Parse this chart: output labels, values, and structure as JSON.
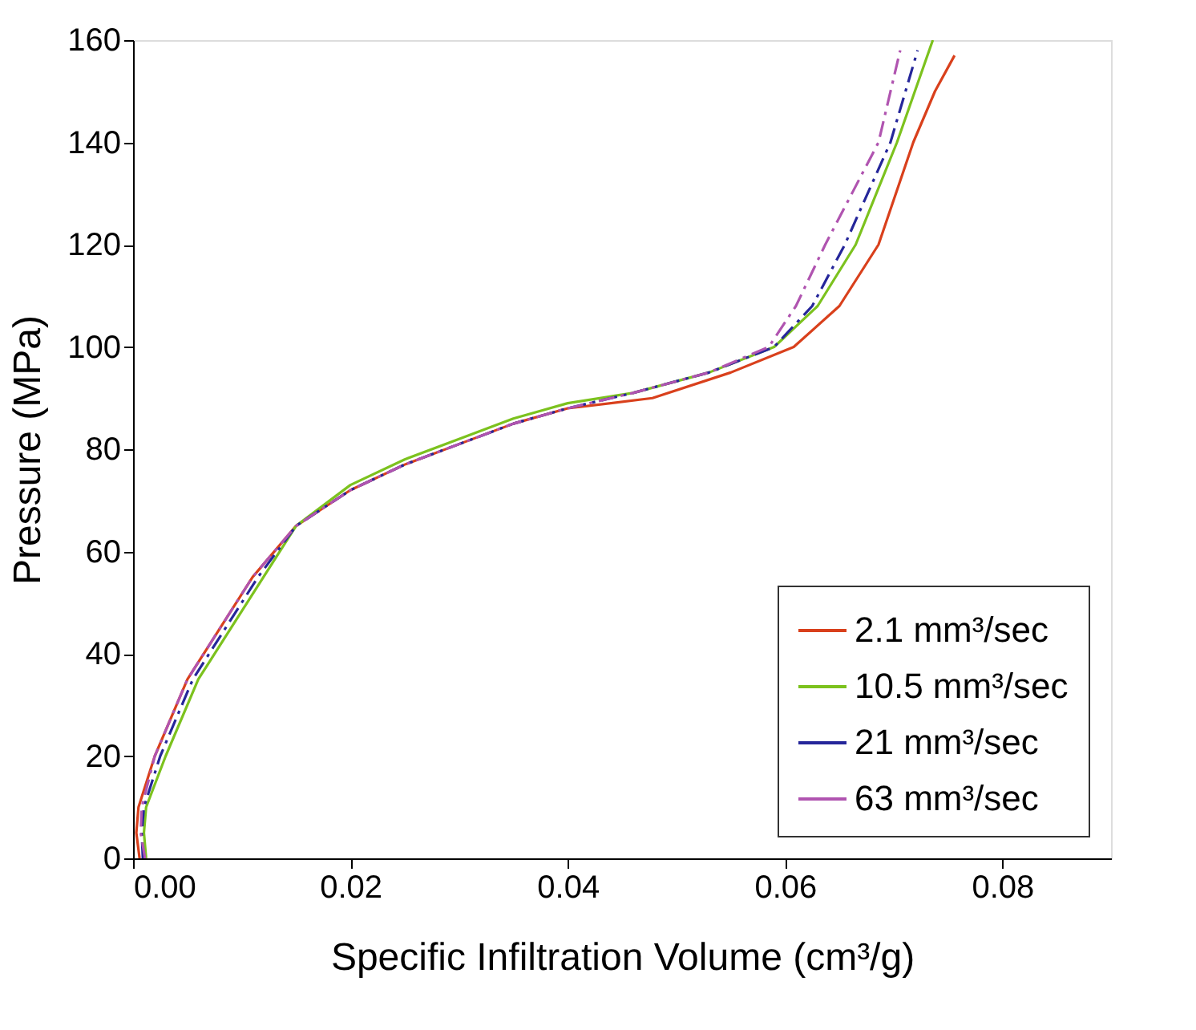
{
  "chart_data": {
    "type": "line",
    "xlabel": "Specific Infiltration Volume (cm³/g)",
    "ylabel": "Pressure (MPa)",
    "xlim": [
      0,
      0.09
    ],
    "xticks": [
      {
        "value": 0,
        "label": "0.00"
      },
      {
        "value": 0.02,
        "label": "0.02"
      },
      {
        "value": 0.04,
        "label": "0.04"
      },
      {
        "value": 0.06,
        "label": "0.06"
      },
      {
        "value": 0.08,
        "label": "0.08"
      }
    ],
    "ylim": [
      0,
      160
    ],
    "yticks": [
      0,
      20,
      40,
      60,
      80,
      100,
      120,
      140,
      160
    ],
    "grid": false,
    "legend": "bottom right",
    "series": [
      {
        "name": "2.1 mm³/sec",
        "color": "#d9401c",
        "line_style": "solid",
        "x": [
          0.0006,
          0.0003,
          0.0005,
          0.002,
          0.005,
          0.008,
          0.011,
          0.015,
          0.02,
          0.025,
          0.03,
          0.035,
          0.04,
          0.0478,
          0.055,
          0.0608,
          0.065,
          0.0686,
          0.0718,
          0.0738,
          0.0756
        ],
        "values": [
          0,
          5,
          10,
          20,
          35,
          45,
          55,
          65,
          72,
          77,
          81,
          85,
          88,
          90,
          95,
          100,
          108,
          120,
          140,
          150,
          157
        ]
      },
      {
        "name": "10.5 mm³/sec",
        "color": "#7cc21e",
        "line_style": "solid",
        "x": [
          0.0012,
          0.001,
          0.0012,
          0.003,
          0.006,
          0.009,
          0.012,
          0.015,
          0.02,
          0.025,
          0.03,
          0.035,
          0.04,
          0.046,
          0.053,
          0.059,
          0.063,
          0.0665,
          0.0703,
          0.0736
        ],
        "values": [
          0,
          5,
          10,
          20,
          35,
          45,
          55,
          65,
          73,
          78,
          82,
          86,
          89,
          91,
          95,
          100,
          108,
          120,
          140,
          160
        ]
      },
      {
        "name": "21 mm³/sec",
        "color": "#25269a",
        "line_style": "dashdot",
        "x": [
          0.0009,
          0.0008,
          0.001,
          0.0025,
          0.0055,
          0.0085,
          0.0115,
          0.015,
          0.02,
          0.025,
          0.03,
          0.035,
          0.04,
          0.046,
          0.053,
          0.059,
          0.0625,
          0.0655,
          0.0697,
          0.0722
        ],
        "values": [
          0,
          5,
          10,
          20,
          35,
          45,
          55,
          65,
          72,
          77,
          81,
          85,
          88,
          91,
          95,
          100,
          108,
          120,
          140,
          158
        ]
      },
      {
        "name": "63 mm³/sec",
        "color": "#b054b0",
        "line_style": "dashdot",
        "x": [
          0.0011,
          0.0007,
          0.0008,
          0.002,
          0.005,
          0.008,
          0.011,
          0.015,
          0.02,
          0.025,
          0.03,
          0.035,
          0.04,
          0.046,
          0.053,
          0.0585,
          0.061,
          0.0637,
          0.0686,
          0.0706
        ],
        "values": [
          0,
          5,
          10,
          20,
          35,
          45,
          55,
          65,
          72,
          77,
          81,
          85,
          88,
          91,
          95,
          100,
          108,
          120,
          140,
          158
        ]
      }
    ]
  }
}
